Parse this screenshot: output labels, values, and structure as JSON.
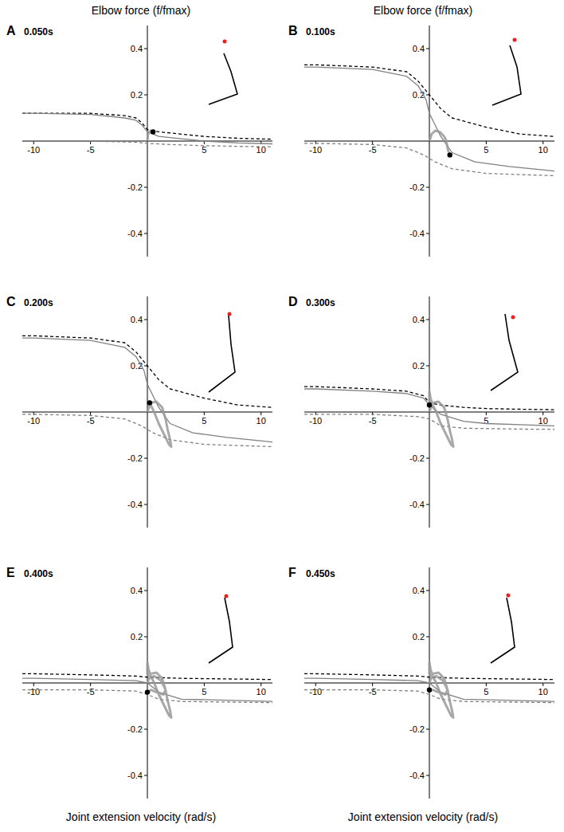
{
  "chart_data": [
    {
      "type": "line",
      "letter": "A",
      "title": "0.050s",
      "y_label": "Elbow force (f/fmax)",
      "xlim": [
        -11,
        11
      ],
      "ylim": [
        -0.5,
        0.5
      ],
      "xticks": [
        -10,
        -5,
        5,
        10
      ],
      "yticks": [
        -0.4,
        -0.2,
        0.2,
        0.4
      ],
      "series": [
        {
          "color": "#000000",
          "line_style": "dashed",
          "x": [
            -11,
            -10,
            -5,
            -2,
            -1,
            -0.5,
            0,
            1,
            3,
            5,
            8,
            11
          ],
          "values": [
            0.12,
            0.12,
            0.12,
            0.11,
            0.1,
            0.08,
            0.05,
            0.04,
            0.03,
            0.02,
            0.012,
            0.008
          ]
        },
        {
          "color": "#808080",
          "line_style": "solid",
          "x": [
            -11,
            -10,
            -5,
            -2,
            -1,
            -0.5,
            0,
            1,
            3,
            5,
            8,
            11
          ],
          "values": [
            0.12,
            0.12,
            0.115,
            0.1,
            0.09,
            0.07,
            0.04,
            0.02,
            0.01,
            0.0,
            -0.008,
            -0.012
          ]
        },
        {
          "color": "#808080",
          "line_style": "dashed",
          "x": [
            -11,
            -10,
            -5,
            -1,
            0,
            2,
            5,
            8,
            11
          ],
          "values": [
            0.0,
            0.0,
            0.0,
            -0.005,
            -0.01,
            -0.015,
            -0.02,
            -0.023,
            -0.025
          ]
        },
        {
          "color": "#999999",
          "line_style": "bold",
          "x": [
            0,
            0.05,
            0.15,
            0.3,
            0.45
          ],
          "values": [
            0,
            0.025,
            0.04,
            0.045,
            0.04
          ]
        },
        {
          "type": "scatter",
          "marker": "circle",
          "color": "#000000",
          "x": [
            0.5
          ],
          "values": [
            0.04
          ]
        }
      ]
    },
    {
      "type": "line",
      "letter": "B",
      "title": "0.100s",
      "y_label": "Elbow force (f/fmax)",
      "xlim": [
        -11,
        11
      ],
      "ylim": [
        -0.5,
        0.5
      ],
      "xticks": [
        -10,
        -5,
        5,
        10
      ],
      "yticks": [
        -0.4,
        -0.2,
        0.2,
        0.4
      ],
      "series": [
        {
          "color": "#000000",
          "line_style": "dashed",
          "x": [
            -11,
            -10,
            -5,
            -2,
            -1,
            0,
            1,
            2,
            5,
            8,
            11
          ],
          "values": [
            0.33,
            0.33,
            0.32,
            0.3,
            0.26,
            0.2,
            0.14,
            0.1,
            0.06,
            0.03,
            0.02
          ]
        },
        {
          "color": "#808080",
          "line_style": "solid",
          "x": [
            -11,
            -10,
            -5,
            -2,
            -1,
            -0.3,
            0,
            1,
            2,
            4,
            7,
            11
          ],
          "values": [
            0.32,
            0.32,
            0.31,
            0.28,
            0.24,
            0.18,
            0.12,
            0.02,
            -0.05,
            -0.09,
            -0.11,
            -0.13
          ]
        },
        {
          "color": "#808080",
          "line_style": "dashed",
          "x": [
            -11,
            -10,
            -5,
            -2,
            -0.5,
            0.5,
            2,
            5,
            11
          ],
          "values": [
            -0.01,
            -0.01,
            -0.015,
            -0.03,
            -0.06,
            -0.09,
            -0.12,
            -0.14,
            -0.15
          ]
        },
        {
          "color": "#999999",
          "line_style": "bold",
          "x": [
            0,
            0.2,
            0.5,
            0.9,
            1.3,
            1.5,
            1.6,
            1.7
          ],
          "values": [
            0,
            0.03,
            0.045,
            0.04,
            0.02,
            0,
            -0.03,
            -0.05
          ]
        },
        {
          "type": "scatter",
          "marker": "circle",
          "color": "#000000",
          "x": [
            1.8
          ],
          "values": [
            -0.06
          ]
        }
      ]
    },
    {
      "type": "line",
      "letter": "C",
      "title": "0.200s",
      "xlim": [
        -11,
        11
      ],
      "ylim": [
        -0.5,
        0.5
      ],
      "xticks": [
        -10,
        -5,
        5,
        10
      ],
      "yticks": [
        -0.4,
        -0.2,
        0.2,
        0.4
      ],
      "series": [
        {
          "color": "#000000",
          "line_style": "dashed",
          "x": [
            -11,
            -10,
            -5,
            -2,
            -1,
            0,
            1,
            2,
            5,
            8,
            11
          ],
          "values": [
            0.33,
            0.33,
            0.32,
            0.3,
            0.26,
            0.2,
            0.14,
            0.1,
            0.06,
            0.03,
            0.02
          ]
        },
        {
          "color": "#808080",
          "line_style": "solid",
          "x": [
            -11,
            -10,
            -5,
            -2,
            -1,
            -0.3,
            0,
            1,
            2,
            4,
            7,
            11
          ],
          "values": [
            0.32,
            0.32,
            0.31,
            0.28,
            0.24,
            0.18,
            0.12,
            0.02,
            -0.05,
            -0.09,
            -0.11,
            -0.13
          ]
        },
        {
          "color": "#808080",
          "line_style": "dashed",
          "x": [
            -11,
            -10,
            -5,
            -2,
            -0.5,
            0.5,
            2,
            5,
            11
          ],
          "values": [
            -0.01,
            -0.01,
            -0.015,
            -0.03,
            -0.06,
            -0.09,
            -0.12,
            -0.14,
            -0.15
          ]
        },
        {
          "color": "#999999",
          "line_style": "bold",
          "x": [
            0,
            0.3,
            0.8,
            1.3,
            1.6,
            1.8,
            2.0,
            2.1,
            1.9,
            1.5,
            1.0,
            0.6,
            0.3
          ],
          "values": [
            0,
            0.04,
            0.045,
            0.02,
            -0.03,
            -0.08,
            -0.12,
            -0.15,
            -0.14,
            -0.1,
            -0.05,
            0,
            0.03
          ]
        },
        {
          "type": "scatter",
          "marker": "circle",
          "color": "#000000",
          "x": [
            0.2
          ],
          "values": [
            0.04
          ]
        }
      ]
    },
    {
      "type": "line",
      "letter": "D",
      "title": "0.300s",
      "xlim": [
        -11,
        11
      ],
      "ylim": [
        -0.5,
        0.5
      ],
      "xticks": [
        -10,
        -5,
        5,
        10
      ],
      "yticks": [
        -0.4,
        -0.2,
        0.2,
        0.4
      ],
      "series": [
        {
          "color": "#000000",
          "line_style": "dashed",
          "x": [
            -11,
            -10,
            -5,
            -2,
            -0.5,
            0,
            1,
            3,
            5,
            8,
            11
          ],
          "values": [
            0.11,
            0.11,
            0.1,
            0.09,
            0.07,
            0.04,
            0.03,
            0.02,
            0.015,
            0.012,
            0.01
          ]
        },
        {
          "color": "#808080",
          "line_style": "solid",
          "x": [
            -11,
            -10,
            -5,
            -2,
            -0.5,
            0,
            1,
            3,
            5,
            8,
            11
          ],
          "values": [
            0.1,
            0.1,
            0.09,
            0.08,
            0.06,
            0.03,
            -0.01,
            -0.04,
            -0.05,
            -0.055,
            -0.06
          ]
        },
        {
          "color": "#808080",
          "line_style": "dashed",
          "x": [
            -11,
            -10,
            -5,
            -1,
            0,
            1,
            3,
            8,
            11
          ],
          "values": [
            -0.01,
            -0.01,
            -0.01,
            -0.02,
            -0.03,
            -0.06,
            -0.07,
            -0.074,
            -0.075
          ]
        },
        {
          "color": "#999999",
          "line_style": "bold",
          "x": [
            0,
            0.3,
            0.8,
            1.3,
            1.6,
            1.8,
            2.0,
            2.1,
            1.9,
            1.5,
            1.0,
            0.6,
            0.3,
            0.1,
            0,
            0
          ],
          "values": [
            0,
            0.04,
            0.045,
            0.02,
            -0.03,
            -0.08,
            -0.12,
            -0.15,
            -0.14,
            -0.1,
            -0.05,
            0,
            0.03,
            0.06,
            0.09,
            0.04
          ]
        },
        {
          "type": "scatter",
          "marker": "circle",
          "color": "#000000",
          "x": [
            0
          ],
          "values": [
            0.03
          ]
        }
      ]
    },
    {
      "type": "line",
      "letter": "E",
      "title": "0.400s",
      "x_label": "Joint extension velocity (rad/s)",
      "xlim": [
        -11,
        11
      ],
      "ylim": [
        -0.5,
        0.5
      ],
      "xticks": [
        -10,
        -5,
        5,
        10
      ],
      "yticks": [
        -0.4,
        -0.2,
        0.2,
        0.4
      ],
      "series": [
        {
          "color": "#000000",
          "line_style": "dashed",
          "x": [
            -11,
            -10,
            -5,
            -1,
            0,
            3,
            11
          ],
          "values": [
            0.04,
            0.04,
            0.035,
            0.03,
            0.025,
            0.02,
            0.015
          ]
        },
        {
          "color": "#808080",
          "line_style": "solid",
          "x": [
            -11,
            -10,
            -5,
            -1,
            0,
            1,
            3,
            11
          ],
          "values": [
            0.02,
            0.02,
            0.015,
            0.01,
            0,
            -0.04,
            -0.07,
            -0.08
          ]
        },
        {
          "color": "#808080",
          "line_style": "dashed",
          "x": [
            -11,
            -10,
            -5,
            -1,
            0,
            1,
            3,
            11
          ],
          "values": [
            -0.03,
            -0.03,
            -0.03,
            -0.035,
            -0.05,
            -0.07,
            -0.08,
            -0.085
          ]
        },
        {
          "color": "#999999",
          "line_style": "bold",
          "x": [
            0,
            0.3,
            0.8,
            1.3,
            1.6,
            1.8,
            2.0,
            2.1,
            1.9,
            1.5,
            1.0,
            0.6,
            0.3,
            0.1,
            0,
            0,
            0.2,
            0.6,
            1.2,
            1.6,
            1.4,
            0.8,
            0.3,
            0
          ],
          "values": [
            0,
            0.04,
            0.045,
            0.02,
            -0.03,
            -0.08,
            -0.12,
            -0.15,
            -0.14,
            -0.1,
            -0.05,
            0,
            0.03,
            0.06,
            0.09,
            0.04,
            0.02,
            0.03,
            0.01,
            -0.03,
            -0.05,
            -0.04,
            -0.03,
            -0.04
          ]
        },
        {
          "type": "scatter",
          "marker": "circle",
          "color": "#000000",
          "x": [
            0
          ],
          "values": [
            -0.04
          ]
        }
      ]
    },
    {
      "type": "line",
      "letter": "F",
      "title": "0.450s",
      "x_label": "Joint extension velocity (rad/s)",
      "xlim": [
        -11,
        11
      ],
      "ylim": [
        -0.5,
        0.5
      ],
      "xticks": [
        -10,
        -5,
        5,
        10
      ],
      "yticks": [
        -0.4,
        -0.2,
        0.2,
        0.4
      ],
      "series": [
        {
          "color": "#000000",
          "line_style": "dashed",
          "x": [
            -11,
            -10,
            -5,
            -1,
            0,
            3,
            11
          ],
          "values": [
            0.04,
            0.04,
            0.035,
            0.03,
            0.025,
            0.02,
            0.015
          ]
        },
        {
          "color": "#808080",
          "line_style": "solid",
          "x": [
            -11,
            -10,
            -5,
            -1,
            0,
            1,
            3,
            11
          ],
          "values": [
            0.02,
            0.02,
            0.015,
            0.01,
            0,
            -0.04,
            -0.07,
            -0.08
          ]
        },
        {
          "color": "#808080",
          "line_style": "dashed",
          "x": [
            -11,
            -10,
            -5,
            -1,
            0,
            1,
            3,
            11
          ],
          "values": [
            -0.03,
            -0.03,
            -0.03,
            -0.035,
            -0.05,
            -0.07,
            -0.08,
            -0.085
          ]
        },
        {
          "color": "#999999",
          "line_style": "bold",
          "x": [
            0,
            0.3,
            0.8,
            1.3,
            1.6,
            1.8,
            2.0,
            2.1,
            1.9,
            1.5,
            1.0,
            0.6,
            0.3,
            0.1,
            0,
            0,
            0.2,
            0.6,
            1.2,
            1.6,
            1.4,
            0.8,
            0.3,
            0
          ],
          "values": [
            0,
            0.04,
            0.045,
            0.02,
            -0.03,
            -0.08,
            -0.12,
            -0.15,
            -0.14,
            -0.1,
            -0.05,
            0,
            0.03,
            0.06,
            0.09,
            0.04,
            0.02,
            0.03,
            0.01,
            -0.03,
            -0.05,
            -0.04,
            -0.03,
            -0.03
          ]
        },
        {
          "type": "scatter",
          "marker": "circle",
          "color": "#000000",
          "x": [
            0
          ],
          "values": [
            -0.03
          ]
        }
      ]
    }
  ]
}
